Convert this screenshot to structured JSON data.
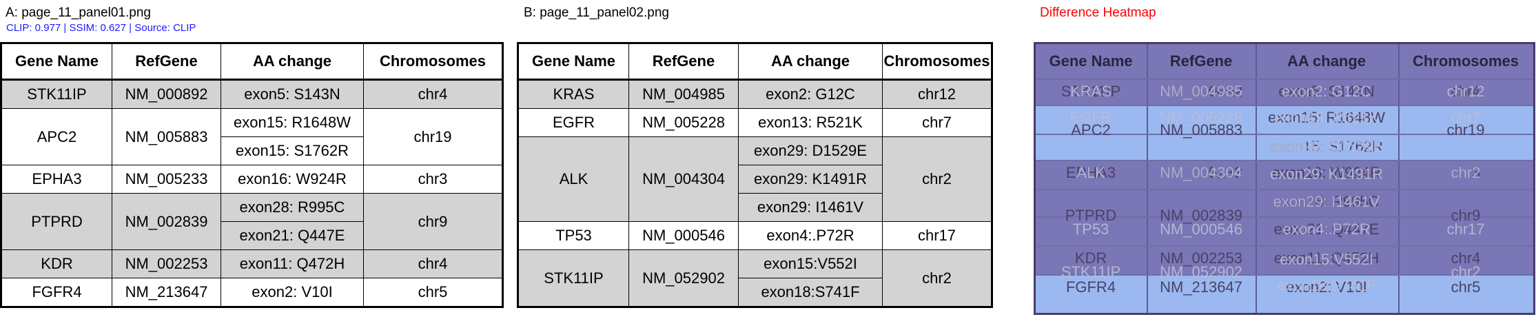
{
  "panels": {
    "a_title": "A: page_11_panel01.png",
    "b_title": "B: page_11_panel02.png",
    "c_title": "Difference Heatmap",
    "metrics": "CLIP: 0.977 | SSIM: 0.627 | Source: CLIP"
  },
  "colors": {
    "a_title": "#000000",
    "metrics": "#1a1aff",
    "c_title": "#ff0000",
    "row_shade": "#d3d3d3",
    "heatmap_base": "#9bb8f0",
    "heatmap_dark": "#7b76b5"
  },
  "headers": [
    "Gene Name",
    "RefGene",
    "AA change",
    "Chromosomes"
  ],
  "table_a": {
    "rows": [
      {
        "gene": "STK11IP",
        "ref": "NM_000892",
        "aa": [
          "exon5: S143N"
        ],
        "chr": "chr4",
        "shaded": true
      },
      {
        "gene": "APC2",
        "ref": "NM_005883",
        "aa": [
          "exon15: R1648W",
          "exon15: S1762R"
        ],
        "chr": "chr19",
        "shaded": false
      },
      {
        "gene": "EPHA3",
        "ref": "NM_005233",
        "aa": [
          "exon16: W924R"
        ],
        "chr": "chr3",
        "shaded": false
      },
      {
        "gene": "PTPRD",
        "ref": "NM_002839",
        "aa": [
          "exon28: R995C",
          "exon21: Q447E"
        ],
        "chr": "chr9",
        "shaded": true
      },
      {
        "gene": "KDR",
        "ref": "NM_002253",
        "aa": [
          "exon11: Q472H"
        ],
        "chr": "chr4",
        "shaded": true
      },
      {
        "gene": "FGFR4",
        "ref": "NM_213647",
        "aa": [
          "exon2: V10I"
        ],
        "chr": "chr5",
        "shaded": false
      }
    ]
  },
  "table_b": {
    "rows": [
      {
        "gene": "KRAS",
        "ref": "NM_004985",
        "aa": [
          "exon2: G12C"
        ],
        "chr": "chr12",
        "shaded": true
      },
      {
        "gene": "EGFR",
        "ref": "NM_005228",
        "aa": [
          "exon13: R521K"
        ],
        "chr": "chr7",
        "shaded": false
      },
      {
        "gene": "ALK",
        "ref": "NM_004304",
        "aa": [
          "exon29: D1529E",
          "exon29: K1491R",
          "exon29: I1461V"
        ],
        "chr": "chr2",
        "shaded": true
      },
      {
        "gene": "TP53",
        "ref": "NM_000546",
        "aa": [
          "exon4:.P72R"
        ],
        "chr": "chr17",
        "shaded": false
      },
      {
        "gene": "STK11IP",
        "ref": "NM_052902",
        "aa": [
          "exon15:V552I",
          "exon18:S741F"
        ],
        "chr": "chr2",
        "shaded": true
      }
    ]
  }
}
